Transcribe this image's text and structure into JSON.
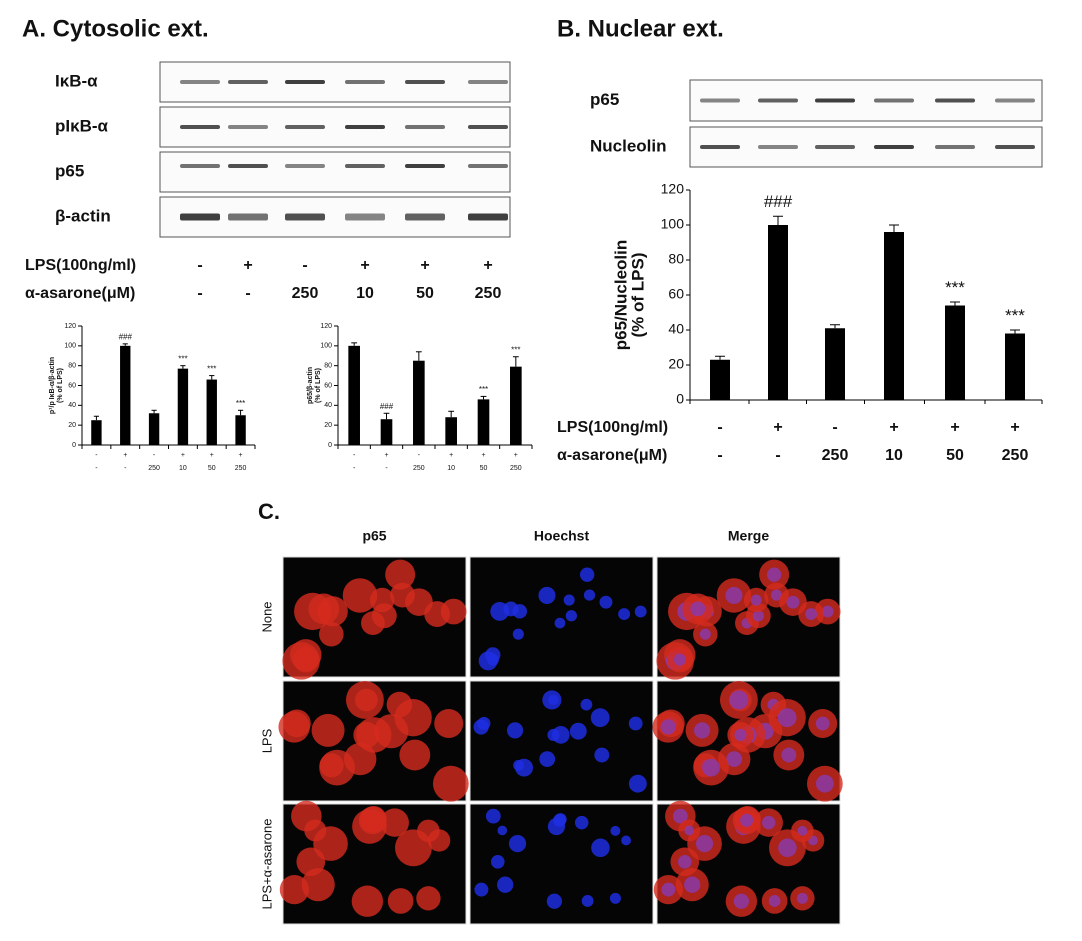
{
  "panel_a": {
    "title": "A. Cytosolic ext.",
    "blots": [
      "IκB-α",
      "pIκB-α",
      "p65",
      "β-actin"
    ]
  },
  "panel_b": {
    "title": "B. Nuclear ext.",
    "blots": [
      "p65",
      "Nucleolin"
    ]
  },
  "treatments": {
    "labels": [
      "LPS(100ng/ml)",
      "α-asarone(μM)"
    ],
    "rows": [
      [
        "-",
        "+",
        "-",
        "+",
        "+",
        "+"
      ],
      [
        "-",
        "-",
        "250",
        "10",
        "50",
        "250"
      ]
    ]
  },
  "chart_data": [
    {
      "type": "bar",
      "ylabel": [
        "p¹/p IκB-α/β-actin",
        "(% of LPS)"
      ],
      "x_label_rows": [
        [
          "-",
          "+",
          "-",
          "+",
          "+",
          "+"
        ],
        [
          "-",
          "-",
          "250",
          "10",
          "50",
          "250"
        ]
      ],
      "values": [
        25,
        100,
        32,
        77,
        66,
        30
      ],
      "errors": [
        4,
        2,
        3,
        3,
        4,
        5
      ],
      "annotations": [
        null,
        "###",
        null,
        "***",
        "***",
        "***"
      ],
      "color": "#000000",
      "ylim": [
        0,
        120
      ],
      "yticks": [
        0,
        20,
        40,
        60,
        80,
        100,
        120
      ]
    },
    {
      "type": "bar",
      "ylabel": [
        "p65/β-actin",
        "(% of LPS)"
      ],
      "x_label_rows": [
        [
          "-",
          "+",
          "-",
          "+",
          "+",
          "+"
        ],
        [
          "-",
          "-",
          "250",
          "10",
          "50",
          "250"
        ]
      ],
      "values": [
        100,
        26,
        85,
        28,
        46,
        79
      ],
      "errors": [
        3,
        6,
        9,
        6,
        3,
        10
      ],
      "annotations": [
        null,
        "###",
        null,
        null,
        "***",
        "***"
      ],
      "color": "#000000",
      "ylim": [
        0,
        120
      ],
      "yticks": [
        0,
        20,
        40,
        60,
        80,
        100,
        120
      ]
    },
    {
      "type": "bar",
      "ylabel": [
        "p65/Nucleolin",
        "(% of LPS)"
      ],
      "values": [
        23,
        100,
        41,
        96,
        54,
        38
      ],
      "errors": [
        2,
        5,
        2,
        4,
        2,
        2
      ],
      "annotations": [
        null,
        "###",
        null,
        null,
        "***",
        "***"
      ],
      "color": "#000000",
      "ylim": [
        0,
        120
      ],
      "yticks": [
        0,
        20,
        40,
        60,
        80,
        100,
        120
      ]
    }
  ],
  "panel_c": {
    "title": "C.",
    "columns": [
      "p65",
      "Hoechst",
      "Merge"
    ],
    "rows": [
      "None",
      "LPS",
      "LPS+α-asarone"
    ]
  }
}
